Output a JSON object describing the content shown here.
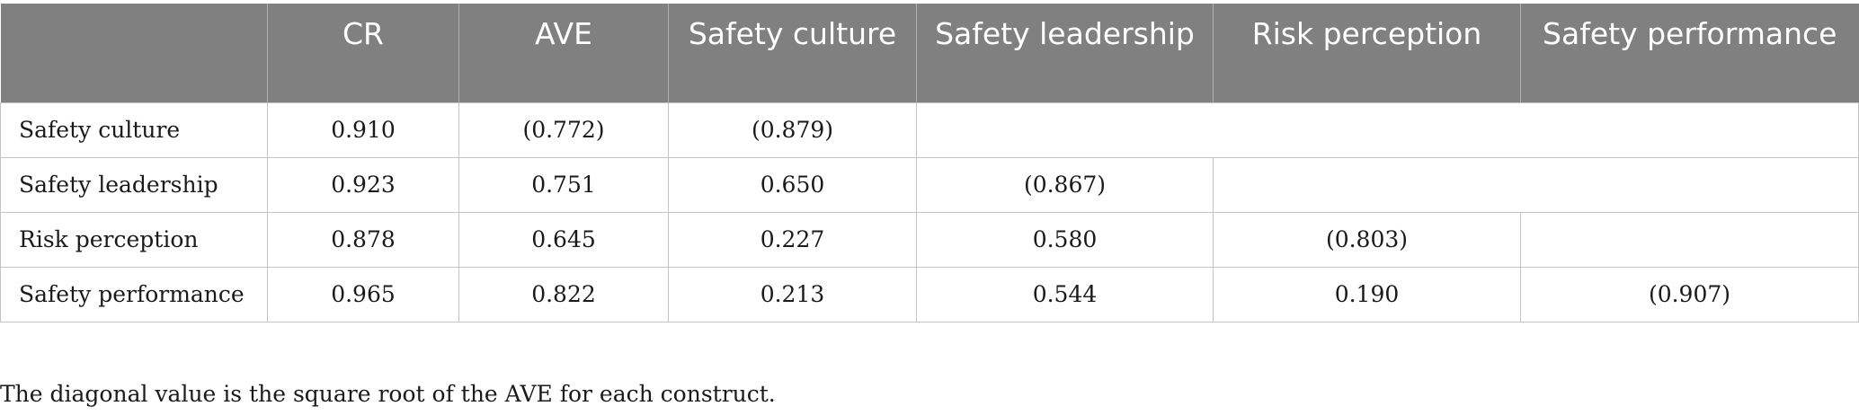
{
  "table": {
    "headers": [
      "",
      "CR",
      "AVE",
      "Safety culture",
      "Safety leadership",
      "Risk perception",
      "Safety performance"
    ],
    "rows": [
      {
        "label": "Safety culture",
        "cr": "0.910",
        "ave": "(0.772)",
        "values": [
          "(0.879)"
        ]
      },
      {
        "label": "Safety leadership",
        "cr": "0.923",
        "ave": "0.751",
        "values": [
          "0.650",
          "(0.867)"
        ]
      },
      {
        "label": "Risk perception",
        "cr": "0.878",
        "ave": "0.645",
        "values": [
          "0.227",
          "0.580",
          "(0.803)"
        ]
      },
      {
        "label": "Safety performance",
        "cr": "0.965",
        "ave": "0.822",
        "values": [
          "0.213",
          "0.544",
          "0.190",
          "(0.907)"
        ]
      }
    ]
  },
  "footnote": "The diagonal value is the square root of the AVE for each construct."
}
